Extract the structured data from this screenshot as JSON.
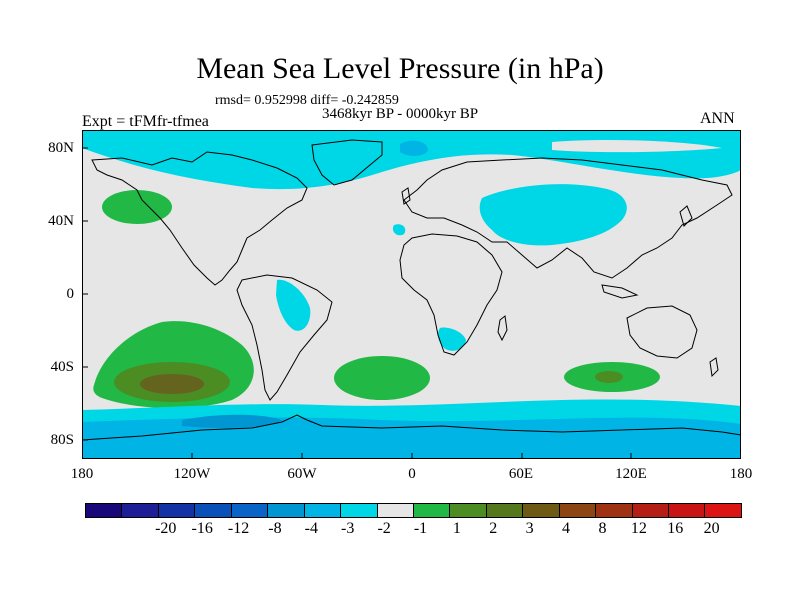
{
  "title": "Mean Sea Level Pressure (in hPa)",
  "stats": "rmsd= 0.952998 diff= -0.242859",
  "period": "3468kyr BP - 0000kyr BP",
  "experiment": "Expt = tFMfr-tfmea",
  "season": "ANN",
  "lat_labels": [
    "80N",
    "40N",
    "0",
    "40S",
    "80S"
  ],
  "lon_labels": [
    "180",
    "120W",
    "60W",
    "0",
    "60E",
    "120E",
    "180"
  ],
  "colors": {
    "land_zero": "#e6e6e6",
    "neg1": "#00d7e6",
    "neg2": "#00b4e6",
    "neg3": "#0096d2",
    "neg4": "#0a64c8",
    "pos1": "#21b845",
    "pos2": "#4b8c23",
    "pos3": "#64641e"
  },
  "colorbar": {
    "colors": [
      "#19087a",
      "#1e1e96",
      "#1232a5",
      "#0a50b9",
      "#0a64c8",
      "#0096d2",
      "#00b4e6",
      "#00d7e6",
      "#e6e6e6",
      "#21b845",
      "#4b8c23",
      "#55781c",
      "#6e5a14",
      "#8c4614",
      "#a03214",
      "#b41e14",
      "#c81414",
      "#dc1414"
    ],
    "labels": [
      "-20",
      "-16",
      "-12",
      "-8",
      "-4",
      "-3",
      "-2",
      "-1",
      "1",
      "2",
      "3",
      "4",
      "8",
      "12",
      "16",
      "20"
    ]
  }
}
